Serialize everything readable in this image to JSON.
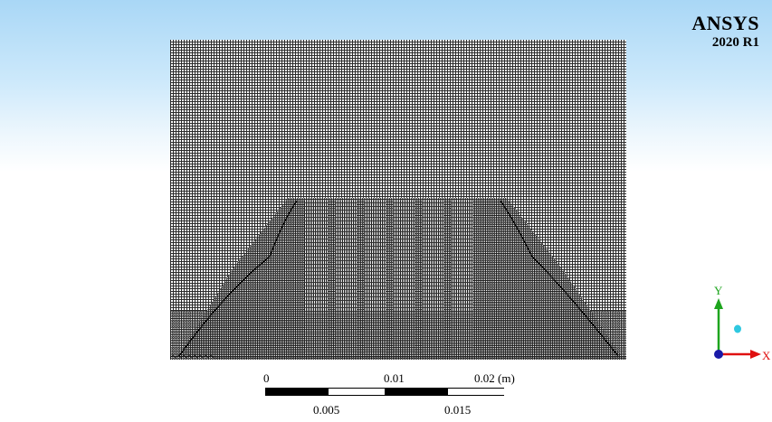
{
  "branding": {
    "product": "ANSYS",
    "version": "2020 R1"
  },
  "scale_bar": {
    "top_labels": [
      "0",
      "0.01",
      "0.02 (m)"
    ],
    "bottom_labels": [
      "0.005",
      "0.015"
    ]
  },
  "axis_triad": {
    "y_label": "Y",
    "x_label": "X",
    "colors": {
      "y_axis": "#1ea51e",
      "x_axis": "#e01010",
      "origin": "#1a1aa8",
      "marker": "#2fc8e0"
    }
  },
  "viewport": {
    "gradient_top": "#a9d7f6",
    "background": "#ffffff",
    "mesh_line_color": "#2b2b2b"
  }
}
